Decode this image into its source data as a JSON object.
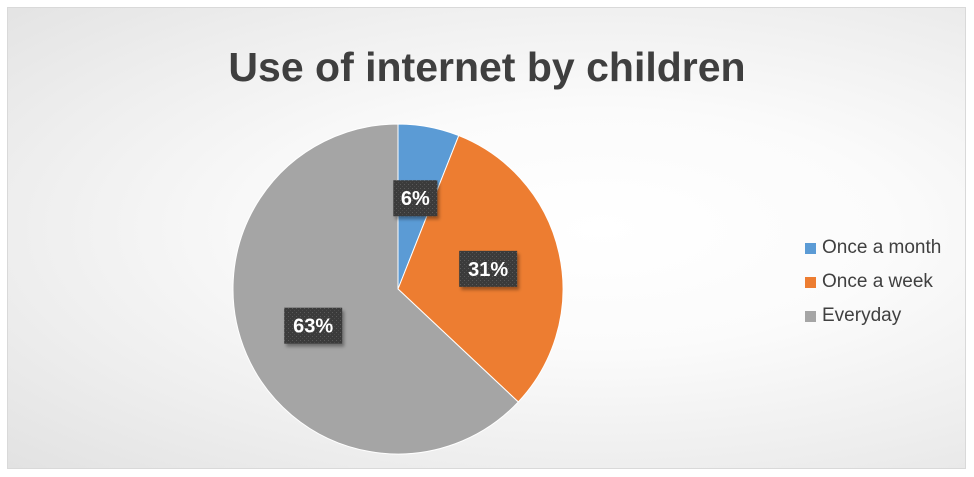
{
  "chart_data": {
    "type": "pie",
    "title": "Use of internet by children",
    "categories": [
      "Once a month",
      "Once a week",
      "Everyday"
    ],
    "values": [
      6,
      31,
      63
    ],
    "data_labels": [
      "6%",
      "31%",
      "63%"
    ],
    "colors": [
      "#5b9bd5",
      "#ed7d31",
      "#a5a5a5"
    ],
    "legend_position": "right"
  }
}
